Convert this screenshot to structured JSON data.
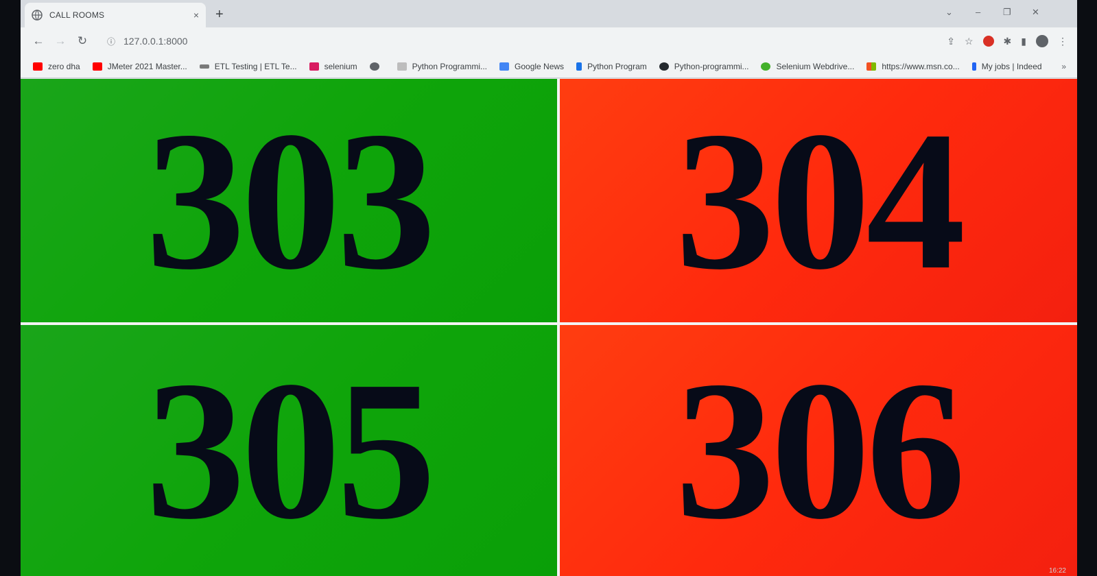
{
  "browser": {
    "tab_title": "CALL ROOMS",
    "tab_close": "×",
    "new_tab": "+",
    "url": "127.0.0.1:8000",
    "window_controls": {
      "chevron": "⌄",
      "minimize": "–",
      "restore": "❐",
      "close": "✕"
    },
    "nav": {
      "back": "←",
      "forward": "→",
      "reload": "↻"
    },
    "info_icon": "ⓘ",
    "toolbar_icons": {
      "share": "⇪",
      "star": "☆",
      "extensions": "✱",
      "sidepanel": "▮",
      "menu": "⋮"
    }
  },
  "bookmarks": [
    {
      "label": "zero dha",
      "icon": "youtube-icon",
      "color": "#ff0000"
    },
    {
      "label": "JMeter 2021 Master...",
      "icon": "youtube-icon",
      "color": "#ff0000"
    },
    {
      "label": "ETL Testing | ETL Te...",
      "icon": "etl-icon",
      "color": "#7a7a7a"
    },
    {
      "label": "selenium",
      "icon": "selenium-icon",
      "color": "#d81b60"
    },
    {
      "label": "",
      "icon": "globe-icon",
      "color": "#5f6368"
    },
    {
      "label": "Python Programmi...",
      "icon": "w3-icon",
      "color": "#9e9e9e"
    },
    {
      "label": "Google News",
      "icon": "google-news-icon",
      "color": "#4285f4"
    },
    {
      "label": "Python Program",
      "icon": "python-program-icon",
      "color": "#1a73e8"
    },
    {
      "label": "Python-programmi...",
      "icon": "github-icon",
      "color": "#24292e"
    },
    {
      "label": "Selenium Webdrive...",
      "icon": "selenium-webdriver-icon",
      "color": "#43b02a"
    },
    {
      "label": "https://www.msn.co...",
      "icon": "msn-icon",
      "color": "#f25022"
    },
    {
      "label": "My jobs | Indeed",
      "icon": "indeed-icon",
      "color": "#2164f3"
    }
  ],
  "bookmarks_more": "»",
  "rooms": [
    {
      "number": "303",
      "status": "free",
      "color": "#0fa50a"
    },
    {
      "number": "304",
      "status": "busy",
      "color": "#ff2a0d"
    },
    {
      "number": "305",
      "status": "free",
      "color": "#0fa50a"
    },
    {
      "number": "306",
      "status": "busy",
      "color": "#ff2a0d"
    }
  ],
  "taskbar": {
    "clock": "16:22"
  }
}
